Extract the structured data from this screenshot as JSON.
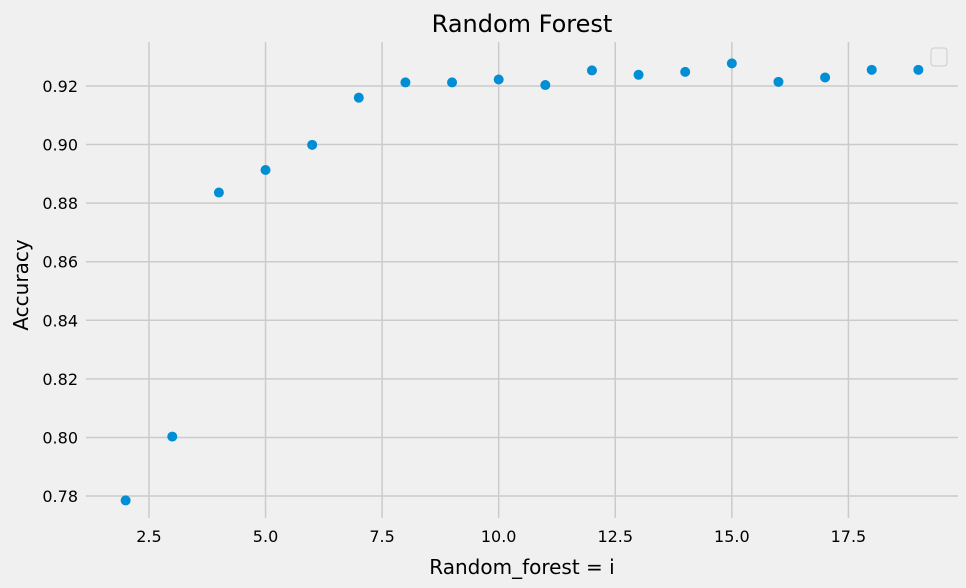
{
  "chart_data": {
    "type": "scatter",
    "title": "Random Forest",
    "xlabel": "Random_forest = i",
    "ylabel": "Accuracy",
    "xlim": [
      1.15,
      19.85
    ],
    "ylim": [
      0.7725,
      0.935
    ],
    "xticks": [
      2.5,
      5.0,
      7.5,
      10.0,
      12.5,
      15.0,
      17.5
    ],
    "xtick_labels": [
      "2.5",
      "5.0",
      "7.5",
      "10.0",
      "12.5",
      "15.0",
      "17.5"
    ],
    "yticks": [
      0.78,
      0.8,
      0.82,
      0.84,
      0.86,
      0.88,
      0.9,
      0.92
    ],
    "ytick_labels": [
      "0.78",
      "0.80",
      "0.82",
      "0.84",
      "0.86",
      "0.88",
      "0.90",
      "0.92"
    ],
    "grid": true,
    "legend": "top-right (empty)",
    "series": [
      {
        "color": "#008fd5",
        "x": [
          2,
          3,
          4,
          5,
          6,
          7,
          8,
          9,
          10,
          11,
          12,
          13,
          14,
          15,
          16,
          17,
          18,
          19
        ],
        "y": [
          0.7785,
          0.8003,
          0.8836,
          0.8913,
          0.8999,
          0.916,
          0.9212,
          0.9212,
          0.9222,
          0.9203,
          0.9253,
          0.9238,
          0.9248,
          0.9277,
          0.9214,
          0.9229,
          0.9255,
          0.9255
        ]
      }
    ]
  }
}
